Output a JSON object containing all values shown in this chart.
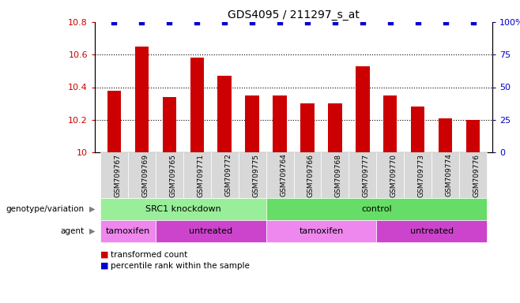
{
  "title": "GDS4095 / 211297_s_at",
  "samples": [
    "GSM709767",
    "GSM709769",
    "GSM709765",
    "GSM709771",
    "GSM709772",
    "GSM709775",
    "GSM709764",
    "GSM709766",
    "GSM709768",
    "GSM709777",
    "GSM709770",
    "GSM709773",
    "GSM709774",
    "GSM709776"
  ],
  "bar_values": [
    10.38,
    10.65,
    10.34,
    10.58,
    10.47,
    10.35,
    10.35,
    10.3,
    10.3,
    10.53,
    10.35,
    10.28,
    10.21,
    10.2
  ],
  "dot_values": [
    100,
    100,
    100,
    100,
    100,
    100,
    100,
    100,
    100,
    100,
    100,
    100,
    100,
    100
  ],
  "bar_color": "#cc0000",
  "dot_color": "#0000cc",
  "ylim_left": [
    10.0,
    10.8
  ],
  "ylim_right": [
    0,
    100
  ],
  "yticks_left": [
    10.0,
    10.2,
    10.4,
    10.6,
    10.8
  ],
  "yticks_right": [
    0,
    25,
    50,
    75,
    100
  ],
  "ytick_labels_left": [
    "10",
    "10.2",
    "10.4",
    "10.6",
    "10.8"
  ],
  "ytick_labels_right": [
    "0",
    "25",
    "50",
    "75",
    "100%"
  ],
  "grid_values": [
    10.2,
    10.4,
    10.6
  ],
  "genotype_groups": [
    {
      "label": "SRC1 knockdown",
      "start": 0,
      "end": 6,
      "color": "#99ee99"
    },
    {
      "label": "control",
      "start": 6,
      "end": 14,
      "color": "#66dd66"
    }
  ],
  "agent_groups": [
    {
      "label": "tamoxifen",
      "start": 0,
      "end": 2,
      "color": "#ee88ee"
    },
    {
      "label": "untreated",
      "start": 2,
      "end": 6,
      "color": "#cc44cc"
    },
    {
      "label": "tamoxifen",
      "start": 6,
      "end": 10,
      "color": "#ee88ee"
    },
    {
      "label": "untreated",
      "start": 10,
      "end": 14,
      "color": "#cc44cc"
    }
  ],
  "legend_items": [
    {
      "label": "transformed count",
      "color": "#cc0000"
    },
    {
      "label": "percentile rank within the sample",
      "color": "#0000cc"
    }
  ],
  "row_labels": [
    "genotype/variation",
    "agent"
  ],
  "sample_bg": "#d8d8d8",
  "axis_bg": "#ffffff",
  "bar_width": 0.5
}
